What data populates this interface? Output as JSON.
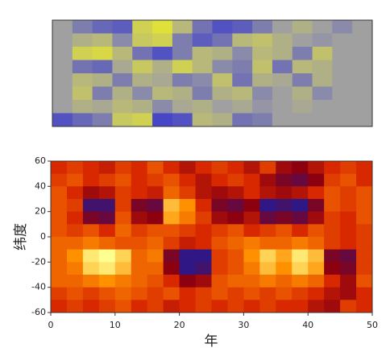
{
  "chart_data": [
    {
      "type": "heatmap",
      "colormap": [
        [
          -1,
          "#3030d0"
        ],
        [
          0,
          "#a0a0a0"
        ],
        [
          1,
          "#f0f020"
        ]
      ],
      "z": [
        [
          0,
          -0.3,
          -0.5,
          -0.6,
          0.6,
          0.8,
          0.3,
          -0.4,
          -0.7,
          -0.6,
          -0.3,
          0,
          0.2,
          0,
          -0.2,
          0
        ],
        [
          0,
          0.2,
          0.3,
          -0.2,
          0.5,
          0.6,
          -0.3,
          -0.6,
          -0.4,
          0.3,
          0.4,
          0.2,
          0,
          -0.1,
          0,
          0
        ],
        [
          0,
          0.6,
          0.7,
          0.3,
          -0.4,
          -0.7,
          -0.3,
          0.3,
          0.2,
          -0.2,
          0.3,
          0.2,
          -0.3,
          0.4,
          0,
          0
        ],
        [
          0,
          -0.4,
          -0.5,
          0.1,
          0.5,
          0.2,
          0.6,
          0.3,
          -0.2,
          -0.3,
          0.4,
          -0.4,
          0.3,
          0.2,
          0,
          0
        ],
        [
          0,
          0.3,
          0.2,
          -0.3,
          0.2,
          0.1,
          -0.3,
          -0.2,
          0.4,
          -0.4,
          0.2,
          0.1,
          -0.3,
          0.2,
          0,
          0
        ],
        [
          0,
          0.4,
          -0.3,
          0.2,
          -0.2,
          0.3,
          0.2,
          -0.3,
          0.2,
          0.3,
          -0.2,
          0,
          0.2,
          -0.2,
          0,
          0
        ],
        [
          0,
          0.2,
          0.1,
          0.3,
          0.2,
          -0.2,
          0.1,
          0.2,
          0,
          0.1,
          -0.1,
          0,
          0.1,
          0,
          0,
          0
        ],
        [
          -0.7,
          -0.5,
          -0.3,
          0.5,
          0.6,
          -0.8,
          -0.7,
          0.3,
          0.2,
          -0.4,
          -0.3,
          0,
          0,
          0,
          0,
          0
        ]
      ]
    },
    {
      "type": "heatmap",
      "xlabel": "年",
      "ylabel": "纬度",
      "xlim": [
        0,
        50
      ],
      "ylim": [
        -60,
        60
      ],
      "xticks": [
        0,
        10,
        20,
        30,
        40,
        50
      ],
      "yticks": [
        60,
        40,
        20,
        0,
        -20,
        -40,
        -60
      ],
      "colormap": [
        [
          -1,
          "#1c1c9c"
        ],
        [
          -0.4,
          "#8c0010"
        ],
        [
          0,
          "#d82800"
        ],
        [
          0.5,
          "#ff9000"
        ],
        [
          1,
          "#ffff90"
        ]
      ],
      "x": [
        1.25,
        3.75,
        6.25,
        8.75,
        11.25,
        13.75,
        16.25,
        18.75,
        21.25,
        23.75,
        26.25,
        28.75,
        31.25,
        33.75,
        36.25,
        38.75,
        41.25,
        43.75,
        46.25,
        48.75
      ],
      "y": [
        55,
        45,
        35,
        25,
        15,
        5,
        -5,
        -15,
        -25,
        -35,
        -45,
        -55
      ],
      "z": [
        [
          0,
          0.1,
          0,
          -0.1,
          0.1,
          0,
          0.2,
          0,
          -0.2,
          0,
          0.1,
          0,
          -0.2,
          0.1,
          -0.3,
          -0.4,
          -0.2,
          0,
          0.1,
          0
        ],
        [
          0.1,
          0.2,
          0,
          0.1,
          0.2,
          0,
          0.1,
          0.2,
          0,
          -0.2,
          0,
          0.1,
          0,
          -0.3,
          -0.5,
          -0.6,
          -0.4,
          0.1,
          0.2,
          0
        ],
        [
          0.2,
          0,
          -0.3,
          -0.2,
          0.1,
          0,
          -0.1,
          0.3,
          0.1,
          -0.2,
          -0.3,
          -0.2,
          0,
          -0.2,
          -0.3,
          -0.2,
          0,
          0.2,
          0.1,
          0.2
        ],
        [
          0.2,
          0.1,
          -0.8,
          -0.8,
          0.1,
          -0.5,
          -0.6,
          0.7,
          0.5,
          0,
          -0.5,
          -0.6,
          -0.4,
          -0.9,
          -0.8,
          -0.9,
          -0.5,
          0.2,
          0.1,
          0.2
        ],
        [
          0.2,
          0,
          -0.5,
          -0.6,
          0.2,
          -0.3,
          -0.4,
          0.6,
          0.4,
          0.1,
          -0.3,
          -0.4,
          -0.2,
          -0.6,
          -0.5,
          -0.6,
          -0.3,
          0.1,
          0,
          0.2
        ],
        [
          0.2,
          0.1,
          0.2,
          0,
          0.3,
          0.1,
          0.2,
          0.2,
          0.1,
          0,
          0.1,
          0.2,
          0,
          0.1,
          0.2,
          0,
          0.2,
          0.1,
          0,
          0.1
        ],
        [
          0.3,
          0.3,
          0.4,
          0.3,
          0.2,
          0.2,
          0.3,
          0.1,
          -0.1,
          0,
          0.2,
          0.3,
          0.4,
          0.3,
          0.3,
          0.4,
          0.3,
          0.1,
          0,
          0.1
        ],
        [
          0.3,
          0.5,
          0.9,
          1,
          0.8,
          0.3,
          0.4,
          -0.5,
          -0.9,
          -0.9,
          0.1,
          0.2,
          0.5,
          0.8,
          0.6,
          0.9,
          0.7,
          -0.5,
          -0.6,
          0.1
        ],
        [
          0.3,
          0.4,
          0.8,
          0.9,
          0.7,
          0.3,
          0.3,
          -0.4,
          -0.9,
          -0.8,
          0.1,
          0.2,
          0.4,
          0.7,
          0.5,
          0.8,
          0.6,
          -0.4,
          -0.5,
          0.1
        ],
        [
          0.3,
          0.3,
          0.4,
          0.5,
          0.4,
          0.3,
          0.2,
          0,
          -0.4,
          -0.3,
          0.2,
          0.3,
          0.3,
          0.4,
          0.3,
          0.4,
          0.3,
          0,
          -0.3,
          0.2
        ],
        [
          0.1,
          0.2,
          0.1,
          0.2,
          0.3,
          0.2,
          0.1,
          0.2,
          0,
          0.1,
          0.2,
          0.1,
          0.2,
          0.1,
          0.2,
          0.1,
          0,
          -0.2,
          -0.3,
          0
        ],
        [
          0,
          0.1,
          0,
          0.1,
          0.2,
          0,
          0.1,
          -0.1,
          0,
          0.1,
          0,
          0.1,
          0,
          0.1,
          0,
          0,
          -0.2,
          -0.3,
          0.1,
          0
        ]
      ]
    }
  ]
}
